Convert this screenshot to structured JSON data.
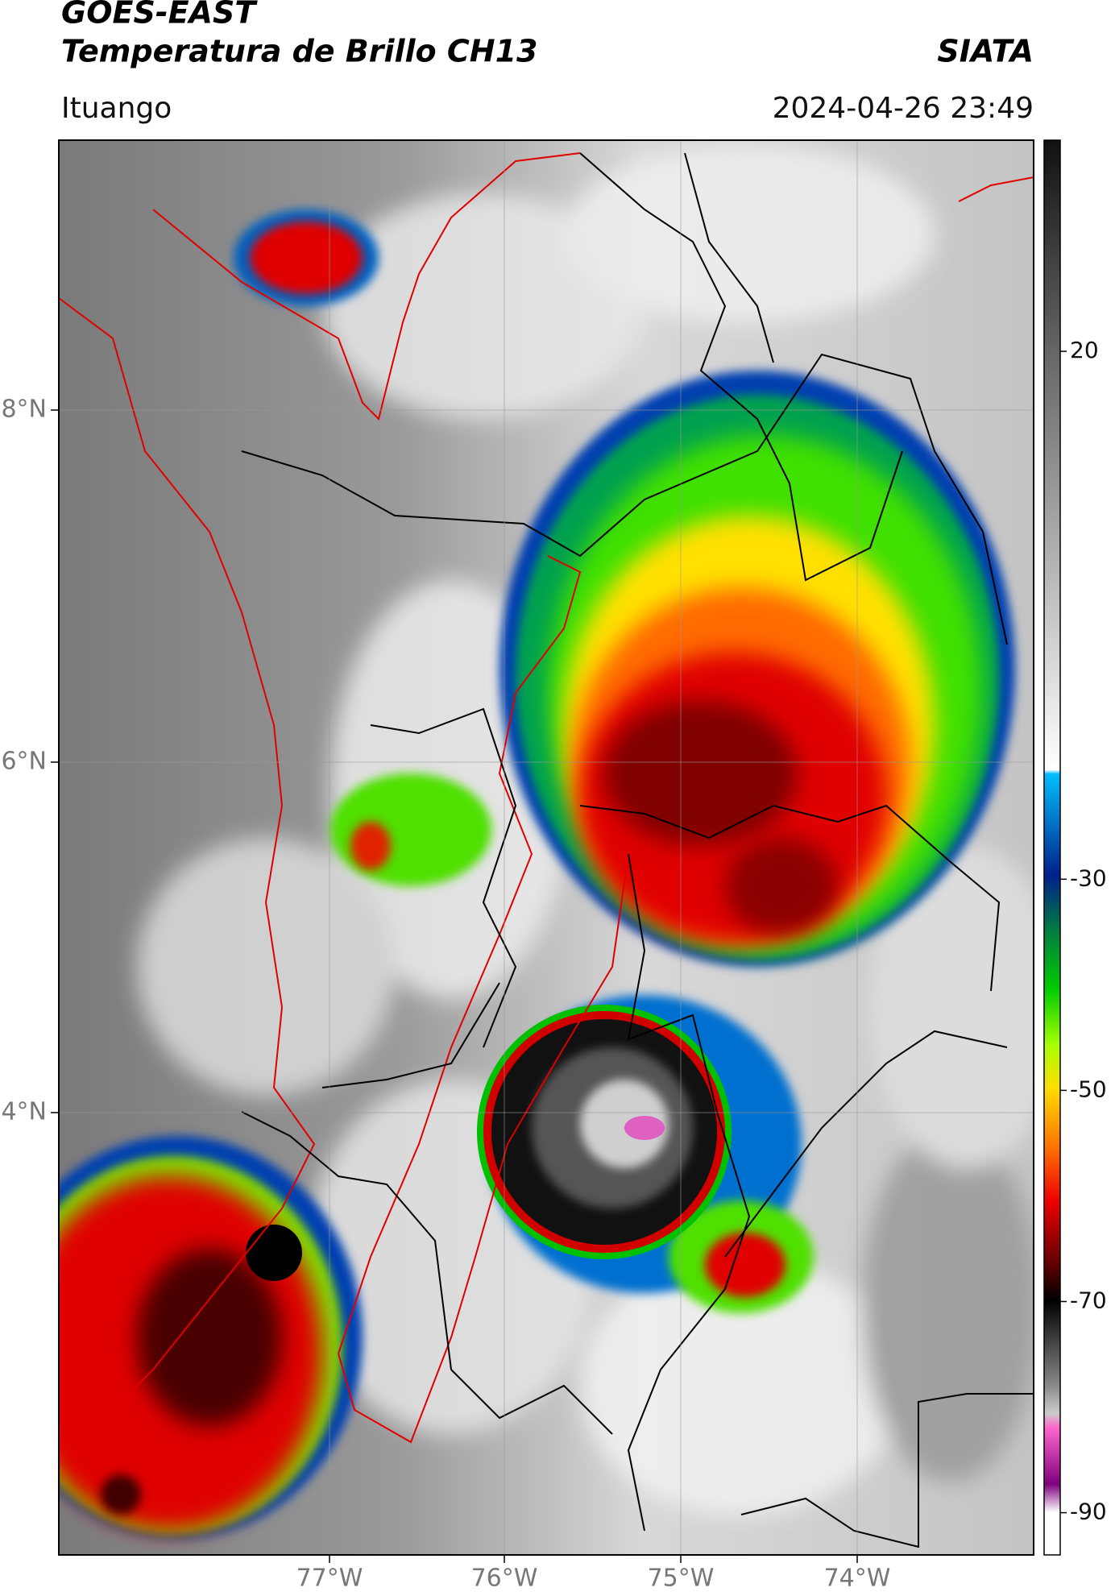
{
  "header": {
    "title": "GOES-EAST",
    "subtitle": "Temperatura de Brillo CH13",
    "source": "SIATA",
    "location": "Ituango",
    "datetime": "2024-04-26 23:49"
  },
  "map": {
    "lat_labels": [
      "8°N",
      "6°N",
      "4°N"
    ],
    "lon_labels": [
      "77°W",
      "76°W",
      "75°W",
      "74°W"
    ]
  },
  "colorbar": {
    "lim": [
      -94,
      40
    ],
    "ticks": [
      20,
      -30,
      -50,
      -70,
      -90
    ]
  }
}
